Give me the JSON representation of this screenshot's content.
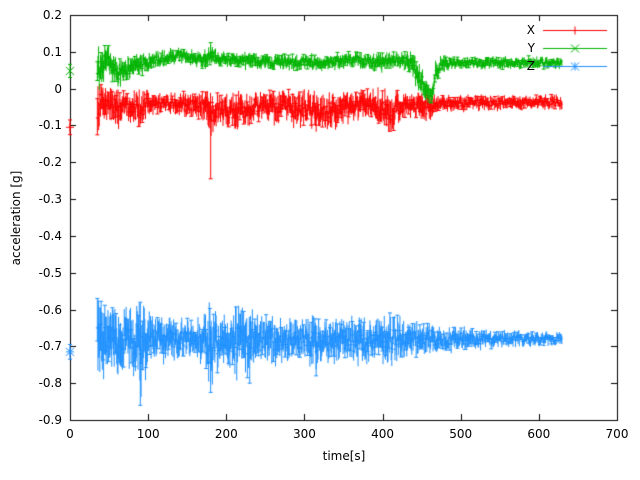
{
  "chart_data": {
    "type": "line",
    "title": "",
    "xlabel": "time[s]",
    "ylabel": "acceleration [g]",
    "xlim": [
      0,
      700
    ],
    "ylim": [
      -0.9,
      0.2
    ],
    "xticks": [
      0,
      100,
      200,
      300,
      400,
      500,
      600,
      700
    ],
    "yticks": [
      0.2,
      0.1,
      0,
      -0.1,
      -0.2,
      -0.3,
      -0.4,
      -0.5,
      -0.6,
      -0.7,
      -0.8,
      -0.9
    ],
    "grid": false,
    "legend_position": "top-right",
    "background_color": "#ffffff",
    "axis_color": "#000000",
    "plot_style": "errorbars",
    "series": [
      {
        "name": "X",
        "color": "#ff0000",
        "marker": "plus",
        "initial_point": {
          "t": 0,
          "y": -0.105,
          "err": 0.02
        },
        "band": [
          [
            35,
            -0.05,
            0.07
          ],
          [
            40,
            -0.04,
            0.05
          ],
          [
            50,
            -0.045,
            0.045
          ],
          [
            60,
            -0.055,
            0.05
          ],
          [
            70,
            -0.04,
            0.035
          ],
          [
            80,
            -0.05,
            0.04
          ],
          [
            90,
            -0.055,
            0.05
          ],
          [
            100,
            -0.04,
            0.03
          ],
          [
            115,
            -0.04,
            0.025
          ],
          [
            130,
            -0.04,
            0.025
          ],
          [
            145,
            -0.045,
            0.03
          ],
          [
            160,
            -0.05,
            0.04
          ],
          [
            170,
            -0.045,
            0.035
          ],
          [
            180,
            -0.06,
            0.06
          ],
          [
            190,
            -0.05,
            0.04
          ],
          [
            200,
            -0.055,
            0.045
          ],
          [
            215,
            -0.06,
            0.05
          ],
          [
            230,
            -0.05,
            0.04
          ],
          [
            245,
            -0.045,
            0.035
          ],
          [
            260,
            -0.05,
            0.04
          ],
          [
            275,
            -0.045,
            0.035
          ],
          [
            290,
            -0.06,
            0.05
          ],
          [
            305,
            -0.05,
            0.04
          ],
          [
            315,
            -0.065,
            0.05
          ],
          [
            325,
            -0.055,
            0.045
          ],
          [
            340,
            -0.06,
            0.045
          ],
          [
            355,
            -0.05,
            0.04
          ],
          [
            370,
            -0.045,
            0.035
          ],
          [
            385,
            -0.045,
            0.04
          ],
          [
            400,
            -0.06,
            0.05
          ],
          [
            410,
            -0.07,
            0.055
          ],
          [
            420,
            -0.05,
            0.04
          ],
          [
            435,
            -0.045,
            0.03
          ],
          [
            450,
            -0.055,
            0.04
          ],
          [
            460,
            -0.05,
            0.035
          ],
          [
            470,
            -0.04,
            0.025
          ],
          [
            485,
            -0.04,
            0.02
          ],
          [
            500,
            -0.04,
            0.02
          ],
          [
            530,
            -0.04,
            0.02
          ],
          [
            560,
            -0.038,
            0.018
          ],
          [
            590,
            -0.038,
            0.018
          ],
          [
            615,
            -0.038,
            0.018
          ],
          [
            630,
            -0.038,
            0.018
          ]
        ],
        "spikes": [
          [
            180,
            -0.245
          ]
        ]
      },
      {
        "name": "Y",
        "color": "#00b400",
        "marker": "times",
        "initial_point": {
          "t": 0,
          "y": 0.048,
          "err": 0.018
        },
        "band": [
          [
            35,
            0.05,
            0.055
          ],
          [
            40,
            0.07,
            0.05
          ],
          [
            48,
            0.08,
            0.04
          ],
          [
            55,
            0.05,
            0.04
          ],
          [
            62,
            0.04,
            0.035
          ],
          [
            70,
            0.05,
            0.03
          ],
          [
            78,
            0.055,
            0.03
          ],
          [
            85,
            0.06,
            0.028
          ],
          [
            95,
            0.07,
            0.025
          ],
          [
            105,
            0.075,
            0.022
          ],
          [
            115,
            0.08,
            0.02
          ],
          [
            128,
            0.085,
            0.02
          ],
          [
            140,
            0.09,
            0.02
          ],
          [
            150,
            0.085,
            0.02
          ],
          [
            160,
            0.08,
            0.02
          ],
          [
            170,
            0.08,
            0.022
          ],
          [
            180,
            0.09,
            0.028
          ],
          [
            190,
            0.082,
            0.02
          ],
          [
            205,
            0.08,
            0.02
          ],
          [
            220,
            0.072,
            0.02
          ],
          [
            232,
            0.08,
            0.022
          ],
          [
            245,
            0.075,
            0.02
          ],
          [
            260,
            0.07,
            0.02
          ],
          [
            275,
            0.072,
            0.02
          ],
          [
            290,
            0.07,
            0.02
          ],
          [
            305,
            0.072,
            0.02
          ],
          [
            320,
            0.07,
            0.02
          ],
          [
            335,
            0.072,
            0.02
          ],
          [
            350,
            0.078,
            0.02
          ],
          [
            365,
            0.08,
            0.02
          ],
          [
            380,
            0.072,
            0.02
          ],
          [
            395,
            0.07,
            0.025
          ],
          [
            410,
            0.078,
            0.022
          ],
          [
            425,
            0.08,
            0.02
          ],
          [
            440,
            0.06,
            0.035
          ],
          [
            450,
            0.02,
            0.04
          ],
          [
            457,
            -0.005,
            0.03
          ],
          [
            463,
            -0.01,
            0.025
          ],
          [
            468,
            0.04,
            0.03
          ],
          [
            475,
            0.065,
            0.022
          ],
          [
            490,
            0.07,
            0.016
          ],
          [
            510,
            0.07,
            0.015
          ],
          [
            540,
            0.07,
            0.015
          ],
          [
            570,
            0.07,
            0.015
          ],
          [
            600,
            0.072,
            0.015
          ],
          [
            630,
            0.07,
            0.015
          ]
        ],
        "spikes": [
          [
            180,
            0.125
          ]
        ]
      },
      {
        "name": "Z",
        "color": "#1e90ff",
        "marker": "asterisk",
        "initial_point": {
          "t": 0,
          "y": -0.715,
          "err": 0.02
        },
        "band": [
          [
            35,
            -0.685,
            0.105
          ],
          [
            42,
            -0.69,
            0.1
          ],
          [
            50,
            -0.685,
            0.09
          ],
          [
            58,
            -0.68,
            0.085
          ],
          [
            66,
            -0.685,
            0.08
          ],
          [
            75,
            -0.68,
            0.075
          ],
          [
            85,
            -0.69,
            0.09
          ],
          [
            92,
            -0.7,
            0.12
          ],
          [
            100,
            -0.68,
            0.065
          ],
          [
            110,
            -0.68,
            0.055
          ],
          [
            120,
            -0.68,
            0.055
          ],
          [
            132,
            -0.68,
            0.05
          ],
          [
            145,
            -0.68,
            0.05
          ],
          [
            158,
            -0.68,
            0.05
          ],
          [
            170,
            -0.685,
            0.06
          ],
          [
            180,
            -0.7,
            0.11
          ],
          [
            190,
            -0.685,
            0.06
          ],
          [
            200,
            -0.68,
            0.065
          ],
          [
            212,
            -0.69,
            0.08
          ],
          [
            225,
            -0.69,
            0.09
          ],
          [
            238,
            -0.685,
            0.07
          ],
          [
            250,
            -0.68,
            0.06
          ],
          [
            262,
            -0.685,
            0.065
          ],
          [
            275,
            -0.68,
            0.055
          ],
          [
            288,
            -0.68,
            0.05
          ],
          [
            300,
            -0.68,
            0.05
          ],
          [
            312,
            -0.69,
            0.07
          ],
          [
            325,
            -0.68,
            0.05
          ],
          [
            338,
            -0.685,
            0.06
          ],
          [
            350,
            -0.68,
            0.05
          ],
          [
            362,
            -0.685,
            0.055
          ],
          [
            375,
            -0.69,
            0.06
          ],
          [
            388,
            -0.68,
            0.05
          ],
          [
            400,
            -0.68,
            0.055
          ],
          [
            412,
            -0.685,
            0.06
          ],
          [
            425,
            -0.68,
            0.05
          ],
          [
            438,
            -0.68,
            0.042
          ],
          [
            452,
            -0.68,
            0.04
          ],
          [
            465,
            -0.68,
            0.038
          ],
          [
            480,
            -0.68,
            0.032
          ],
          [
            500,
            -0.68,
            0.03
          ],
          [
            520,
            -0.68,
            0.026
          ],
          [
            545,
            -0.68,
            0.022
          ],
          [
            570,
            -0.68,
            0.02
          ],
          [
            600,
            -0.68,
            0.018
          ],
          [
            630,
            -0.68,
            0.016
          ]
        ],
        "spikes": [
          [
            90,
            -0.86
          ],
          [
            90,
            -0.58
          ],
          [
            180,
            -0.825
          ],
          [
            230,
            -0.8
          ],
          [
            315,
            -0.78
          ]
        ]
      }
    ]
  }
}
